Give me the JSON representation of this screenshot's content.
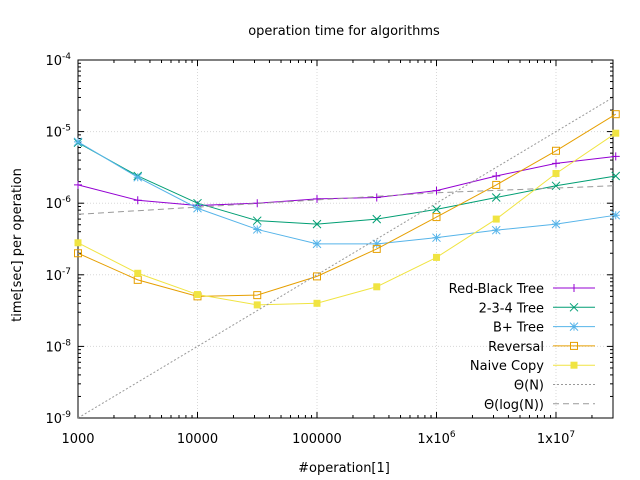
{
  "chart_data": {
    "type": "line",
    "title": "operation time for algorithms",
    "xlabel": "#operation[1]",
    "ylabel": "time[sec] per operation",
    "x_scale": "log",
    "y_scale": "log",
    "xlim": [
      1000,
      30000000
    ],
    "ylim": [
      1e-09,
      0.0001
    ],
    "grid": true,
    "legend_position": "bottom-right",
    "x_ticks": [
      {
        "value": 1000,
        "label": "1000"
      },
      {
        "value": 10000,
        "label": "10000"
      },
      {
        "value": 100000,
        "label": "100000"
      },
      {
        "value": 1000000,
        "label": "1x10",
        "sup": "6"
      },
      {
        "value": 10000000,
        "label": "1x10",
        "sup": "7"
      }
    ],
    "y_ticks": [
      {
        "value": 1e-09,
        "label": "10",
        "sup": "-9"
      },
      {
        "value": 1e-08,
        "label": "10",
        "sup": "-8"
      },
      {
        "value": 1e-07,
        "label": "10",
        "sup": "-7"
      },
      {
        "value": 1e-06,
        "label": "10",
        "sup": "-6"
      },
      {
        "value": 1e-05,
        "label": "10",
        "sup": "-5"
      },
      {
        "value": 0.0001,
        "label": "10",
        "sup": "-4"
      }
    ],
    "x": [
      1000,
      3162,
      10000,
      31623,
      100000,
      316228,
      1000000,
      3162278,
      10000000,
      31622777
    ],
    "series": [
      {
        "name": "Red-Black Tree",
        "color": "#9400d3",
        "marker": "plus",
        "dash": "",
        "values": [
          1.8e-06,
          1.1e-06,
          9.3e-07,
          1e-06,
          1.15e-06,
          1.2e-06,
          1.5e-06,
          2.4e-06,
          3.6e-06,
          4.5e-06
        ]
      },
      {
        "name": "2-3-4 Tree",
        "color": "#009e73",
        "marker": "cross",
        "dash": "",
        "values": [
          7e-06,
          2.4e-06,
          1e-06,
          5.7e-07,
          5.1e-07,
          6e-07,
          8.2e-07,
          1.2e-06,
          1.75e-06,
          2.4e-06
        ]
      },
      {
        "name": "B+ Tree",
        "color": "#56b4e9",
        "marker": "star",
        "dash": "",
        "values": [
          7.2e-06,
          2.3e-06,
          8.5e-07,
          4.3e-07,
          2.7e-07,
          2.7e-07,
          3.3e-07,
          4.2e-07,
          5.1e-07,
          6.8e-07
        ]
      },
      {
        "name": "Reversal",
        "color": "#e69f00",
        "marker": "open-square",
        "dash": "",
        "values": [
          2e-07,
          8.5e-08,
          5e-08,
          5.2e-08,
          9.5e-08,
          2.3e-07,
          6.4e-07,
          1.8e-06,
          5.4e-06,
          1.75e-05
        ]
      },
      {
        "name": "Naive Copy",
        "color": "#f0e442",
        "marker": "filled-square",
        "dash": "",
        "values": [
          2.8e-07,
          1.05e-07,
          5.3e-08,
          3.8e-08,
          4e-08,
          6.8e-08,
          1.75e-07,
          6e-07,
          2.6e-06,
          9.5e-06
        ]
      },
      {
        "name": "Θ(N)",
        "color": "#999999",
        "marker": "none",
        "dash": "2,2",
        "x": [
          1000,
          30000000
        ],
        "values": [
          1e-09,
          3e-05
        ]
      },
      {
        "name": "Θ(log(N))",
        "color": "#999999",
        "marker": "none",
        "dash": "6,4",
        "x": [
          1000,
          1000000,
          30000000
        ],
        "values": [
          7e-07,
          1.4e-06,
          1.75e-06
        ]
      }
    ]
  }
}
